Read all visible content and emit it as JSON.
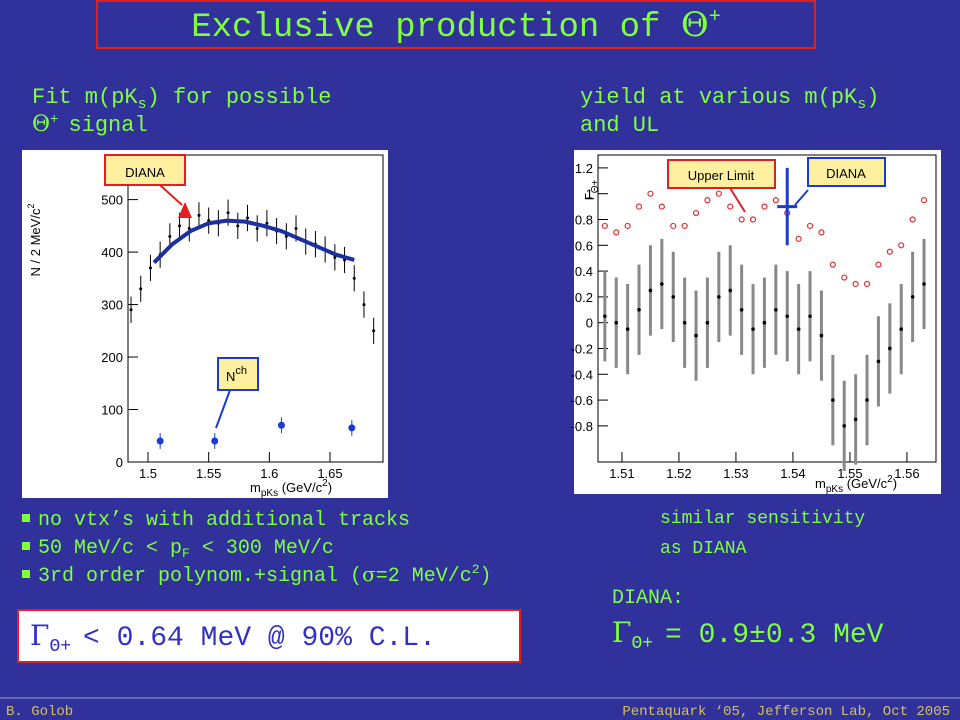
{
  "title": {
    "text": "Exclusive production of ",
    "symbol": "Θ",
    "sup": "+"
  },
  "left_heading": {
    "line1_a": "Fit m(pK",
    "line1_sub": "s",
    "line1_b": ") for possible",
    "line2_symbol": "Θ",
    "line2_sup": "+",
    "line2_text": "signal"
  },
  "right_heading": {
    "line1_a": "yield at various m(pK",
    "line1_sub": "s",
    "line1_b": ")",
    "line2": "and UL"
  },
  "bullets": [
    {
      "a": "no vtx’s with additional tracks"
    },
    {
      "a": "50 MeV/c < p",
      "sub": "F",
      "b": " < 300 MeV/c"
    },
    {
      "a": "3rd order polynom.+signal (",
      "sym": "σ",
      "b": "=2 MeV/c",
      "sup": "2",
      "c": ")"
    }
  ],
  "right_note": [
    "similar sensitivity",
    "as DIANA"
  ],
  "diana": {
    "label": "DIANA:",
    "symbol": "Γ",
    "sub": "Θ+",
    "text": "= 0.9±0.3 MeV"
  },
  "limit": {
    "symbol": "Γ",
    "sub": "Θ+",
    "text": "< 0.64 MeV @ 90% C.L."
  },
  "footer": {
    "left": "B. Golob",
    "right": "Pentaquark ‘05, Jefferson Lab, Oct 2005"
  },
  "left_plot": {
    "type": "scatter",
    "y_label": {
      "a": "N / 2 MeV/c",
      "sup": "2"
    },
    "x_label": {
      "a": "m",
      "sub": "pKs",
      "b": " (GeV/c",
      "sup": "2",
      "c": ")"
    },
    "annotations": {
      "diana": "DIANA",
      "nch": "N",
      "nch_sup": "ch"
    },
    "xlim": [
      1.4835,
      1.6937
    ],
    "ylim": [
      0,
      585
    ],
    "xticks": [
      1.5,
      1.55,
      1.6,
      1.65
    ],
    "yticks": [
      0,
      100,
      200,
      300,
      400,
      500
    ],
    "data": {
      "x": [
        1.486,
        1.494,
        1.502,
        1.51,
        1.518,
        1.526,
        1.534,
        1.542,
        1.55,
        1.558,
        1.566,
        1.574,
        1.582,
        1.59,
        1.598,
        1.606,
        1.614,
        1.622,
        1.63,
        1.638,
        1.646,
        1.654,
        1.662,
        1.67,
        1.678,
        1.686
      ],
      "values": [
        290,
        330,
        370,
        395,
        430,
        450,
        445,
        470,
        460,
        455,
        475,
        450,
        465,
        445,
        455,
        440,
        430,
        445,
        420,
        415,
        405,
        390,
        385,
        350,
        300,
        250
      ],
      "error": 25,
      "color": "#000000"
    },
    "fit": {
      "x": [
        1.505,
        1.52,
        1.535,
        1.55,
        1.565,
        1.58,
        1.595,
        1.61,
        1.625,
        1.64,
        1.655,
        1.67
      ],
      "values": [
        380,
        415,
        440,
        455,
        460,
        458,
        450,
        440,
        425,
        410,
        395,
        385
      ],
      "color": "#1a2fa0"
    },
    "nch": {
      "x": [
        1.51,
        1.555,
        1.61,
        1.668
      ],
      "values": [
        40,
        40,
        70,
        65
      ],
      "error": 15,
      "color": "#1a3ad0"
    }
  },
  "right_plot": {
    "type": "scatter",
    "y_label": {
      "a": "Γ",
      "sub": "Θ+"
    },
    "x_label": {
      "a": "m",
      "sub": "pKs",
      "b": " (GeV/c",
      "sup": "2",
      "c": ")"
    },
    "annotations": {
      "ul": "Upper Limit",
      "diana": "DIANA"
    },
    "xlim": [
      1.5058,
      1.5651
    ],
    "ylim": [
      -1.08,
      1.3
    ],
    "xticks": [
      1.51,
      1.52,
      1.53,
      1.54,
      1.55,
      1.56
    ],
    "yticks": [
      -0.8,
      -0.6,
      -0.4,
      -0.2,
      0,
      0.2,
      0.4,
      0.6,
      0.8,
      1,
      1.2
    ],
    "yield": {
      "x": [
        1.507,
        1.509,
        1.511,
        1.513,
        1.515,
        1.517,
        1.519,
        1.521,
        1.523,
        1.525,
        1.527,
        1.529,
        1.531,
        1.533,
        1.535,
        1.537,
        1.539,
        1.541,
        1.543,
        1.545,
        1.547,
        1.549,
        1.551,
        1.553,
        1.555,
        1.557,
        1.559,
        1.561,
        1.563
      ],
      "values": [
        0.05,
        0.0,
        -0.05,
        0.1,
        0.25,
        0.3,
        0.2,
        0.0,
        -0.1,
        0.0,
        0.2,
        0.25,
        0.1,
        -0.05,
        0.0,
        0.1,
        0.05,
        -0.05,
        0.05,
        -0.1,
        -0.6,
        -0.8,
        -0.75,
        -0.6,
        -0.3,
        -0.2,
        -0.05,
        0.2,
        0.3
      ],
      "error": 0.35,
      "color": "#000000"
    },
    "upper_limit": {
      "x": [
        1.507,
        1.509,
        1.511,
        1.513,
        1.515,
        1.517,
        1.519,
        1.521,
        1.523,
        1.525,
        1.527,
        1.529,
        1.531,
        1.533,
        1.535,
        1.537,
        1.539,
        1.541,
        1.543,
        1.545,
        1.547,
        1.549,
        1.551,
        1.553,
        1.555,
        1.557,
        1.559,
        1.561,
        1.563
      ],
      "values": [
        0.75,
        0.7,
        0.75,
        0.9,
        1.0,
        0.9,
        0.75,
        0.75,
        0.85,
        0.95,
        1.0,
        0.9,
        0.8,
        0.8,
        0.9,
        0.95,
        0.85,
        0.65,
        0.75,
        0.7,
        0.45,
        0.35,
        0.3,
        0.3,
        0.45,
        0.55,
        0.6,
        0.8,
        0.95
      ],
      "color": "#e03030"
    },
    "diana_point": {
      "x": 1.539,
      "value": 0.9,
      "error": 0.3,
      "color": "#1a3ad0"
    }
  }
}
